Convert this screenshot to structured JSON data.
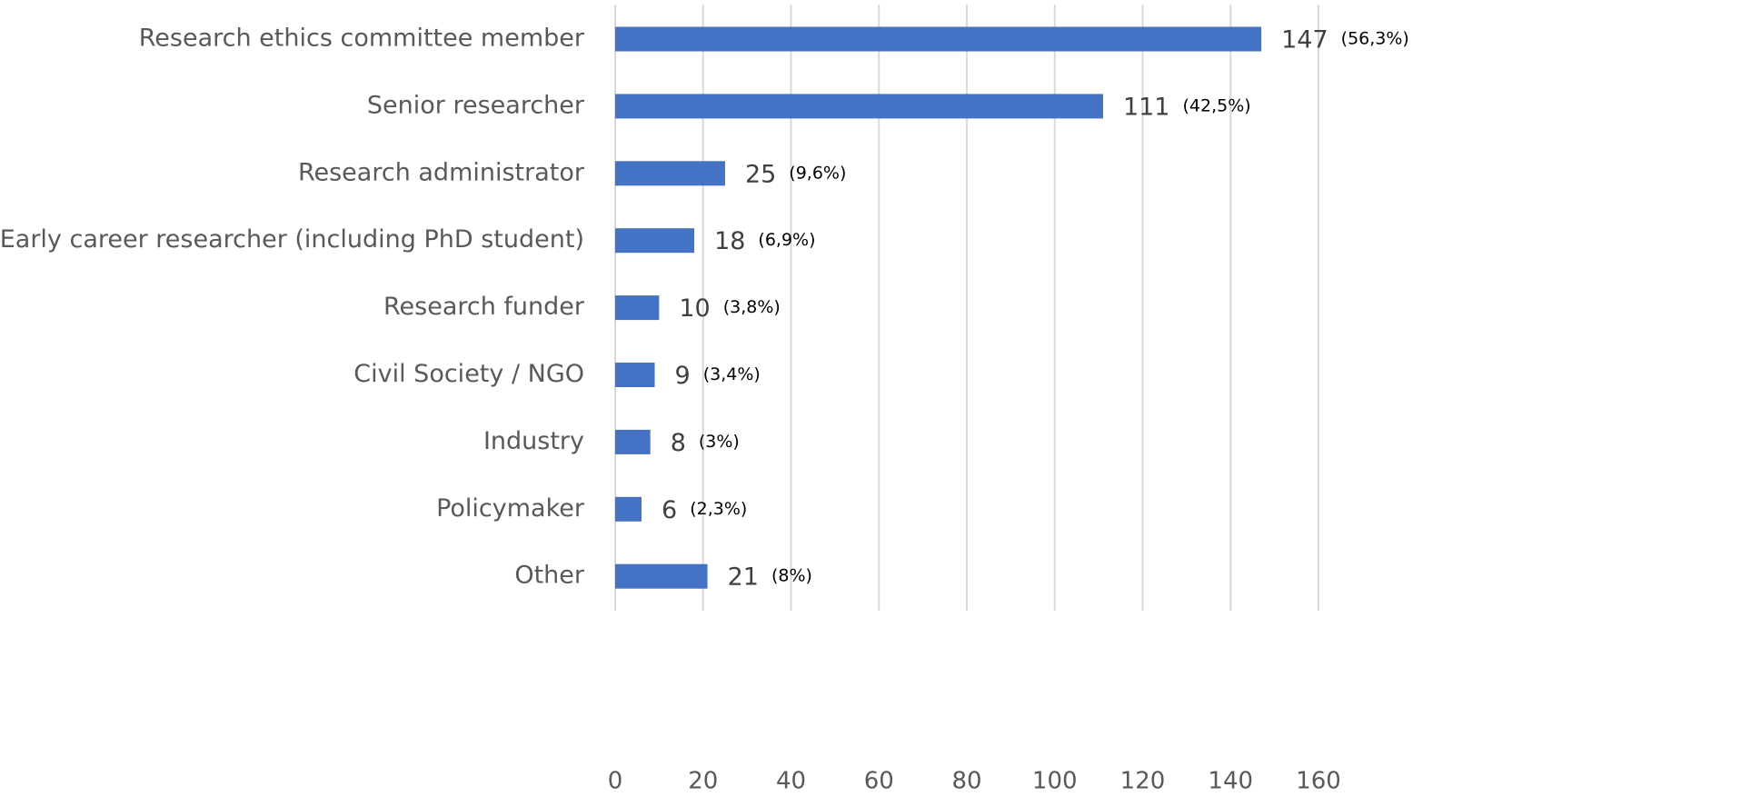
{
  "chart_data": {
    "type": "hbar",
    "categories": [
      "Research ethics committee member",
      "Senior researcher",
      "Research administrator",
      "Early career researcher (including PhD student)",
      "Research funder",
      "Civil Society / NGO",
      "Industry",
      "Policymaker",
      "Other"
    ],
    "values": [
      147,
      111,
      25,
      18,
      10,
      9,
      8,
      6,
      21
    ],
    "percent_values": [
      56.3,
      42.5,
      9.6,
      6.9,
      3.8,
      3.4,
      3,
      2.3,
      8
    ],
    "percent_labels": [
      "(56,3%)",
      "(42,5%)",
      "(9,6%)",
      "(6,9%)",
      "(3,8%)",
      "(3,4%)",
      "(3%)",
      "(2,3%)",
      "(8%)"
    ],
    "color": "#4472c4",
    "xlim": [
      0,
      160
    ],
    "xticks": [
      0,
      20,
      40,
      60,
      80,
      100,
      120,
      140,
      160
    ],
    "grid": true
  }
}
